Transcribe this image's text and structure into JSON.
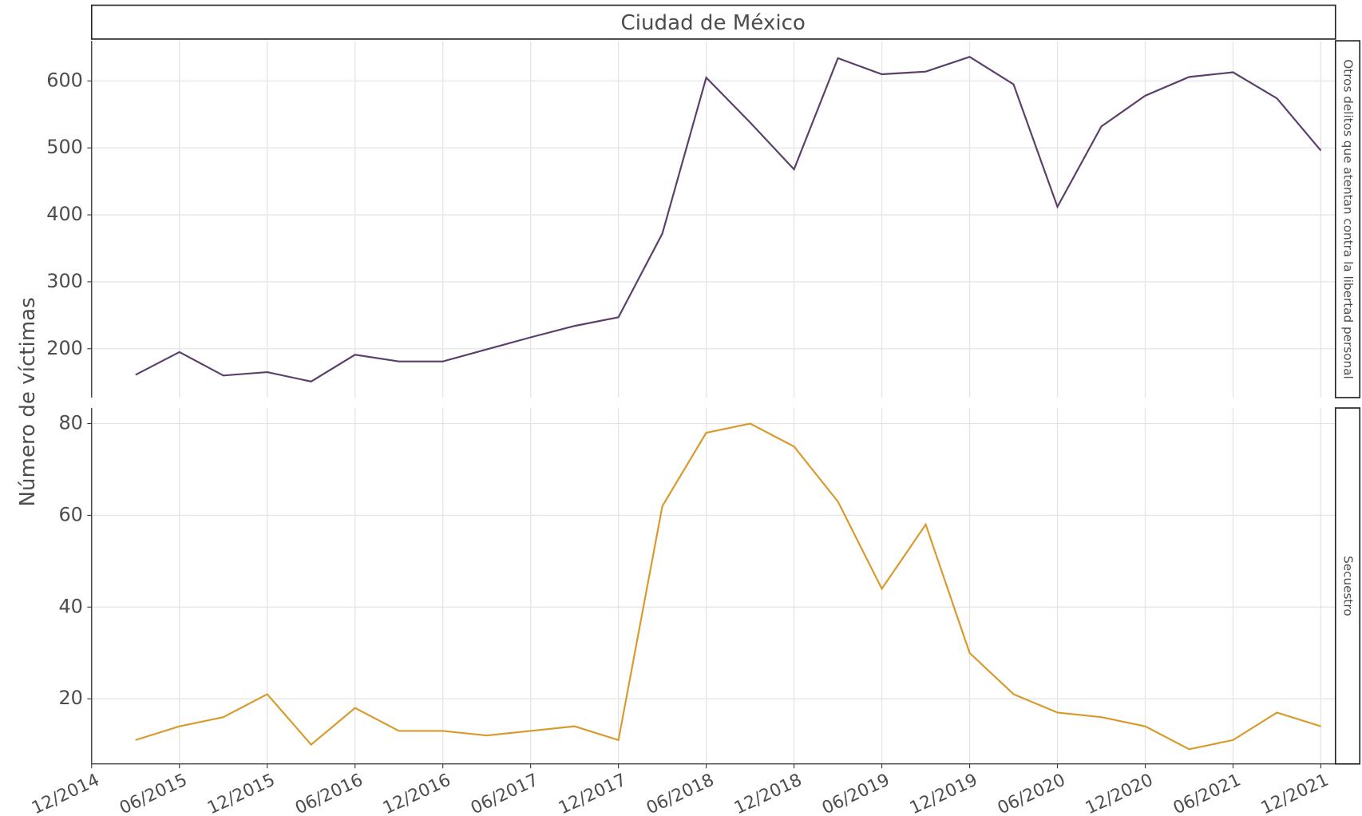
{
  "chart_data": {
    "type": "line",
    "title": "Ciudad de México",
    "ylabel": "Número de víctimas",
    "grid": true,
    "x": [
      "03/2015",
      "06/2015",
      "09/2015",
      "12/2015",
      "03/2016",
      "06/2016",
      "09/2016",
      "12/2016",
      "03/2017",
      "06/2017",
      "09/2017",
      "12/2017",
      "03/2018",
      "06/2018",
      "09/2018",
      "12/2018",
      "03/2019",
      "06/2019",
      "09/2019",
      "12/2019",
      "03/2020",
      "06/2020",
      "09/2020",
      "12/2020",
      "03/2021",
      "06/2021",
      "09/2021",
      "12/2021"
    ],
    "xlim": [
      "12/2014",
      "01/2022"
    ],
    "xticks": [
      "12/2014",
      "06/2015",
      "12/2015",
      "06/2016",
      "12/2016",
      "06/2017",
      "12/2017",
      "06/2018",
      "12/2018",
      "06/2019",
      "12/2019",
      "06/2020",
      "12/2020",
      "06/2021",
      "12/2021"
    ],
    "series": [
      {
        "name": "Otros delitos que atentan contra la libertad personal",
        "color": "#5b3f6b",
        "values": [
          161,
          195,
          160,
          165,
          151,
          191,
          181,
          181,
          199,
          217,
          234,
          247,
          372,
          605,
          538,
          468,
          634,
          610,
          614,
          636,
          595,
          412,
          532,
          578,
          606,
          613,
          574,
          496
        ],
        "ylim": [
          127,
          660
        ],
        "yticks": [
          200,
          300,
          400,
          500,
          600
        ]
      },
      {
        "name": "Secuestro",
        "color": "#d89a2b",
        "values": [
          11,
          14,
          16,
          21,
          10,
          18,
          13,
          13,
          12,
          13,
          14,
          11,
          62,
          78,
          80,
          75,
          63,
          44,
          58,
          30,
          21,
          17,
          16,
          14,
          9,
          11,
          17,
          14
        ],
        "ylim": [
          5.8,
          83.4
        ],
        "yticks": [
          20,
          40,
          60,
          80
        ]
      }
    ]
  }
}
